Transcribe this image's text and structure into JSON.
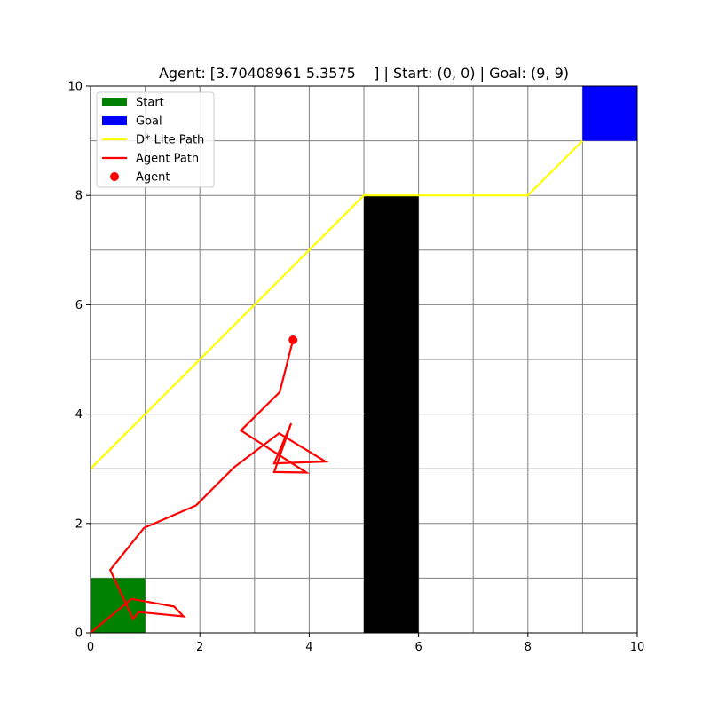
{
  "chart_data": {
    "type": "grid-path",
    "title": "Agent: [3.70408961 5.3575    ] | Start: (0, 0) | Goal: (9, 9)",
    "xlim": [
      0,
      10
    ],
    "ylim": [
      0,
      10
    ],
    "x_ticks": [
      "0",
      "2",
      "4",
      "6",
      "8",
      "10"
    ],
    "y_ticks": [
      "0",
      "2",
      "4",
      "6",
      "8",
      "10"
    ],
    "grid": true,
    "legend": {
      "placement": "top-left",
      "entries": [
        {
          "label": "Start",
          "kind": "patch",
          "color": "#008000"
        },
        {
          "label": "Goal",
          "kind": "patch",
          "color": "#0000ff"
        },
        {
          "label": "D* Lite Path",
          "kind": "line",
          "color": "#ffff00"
        },
        {
          "label": "Agent Path",
          "kind": "line",
          "color": "#ff0000"
        },
        {
          "label": "Agent",
          "kind": "marker",
          "color": "#ff0000"
        }
      ]
    },
    "start_cell": {
      "x": 0,
      "y": 0,
      "w": 1,
      "h": 1,
      "color": "#008000"
    },
    "goal_cell": {
      "x": 9,
      "y": 9,
      "w": 1,
      "h": 1,
      "color": "#0000ff"
    },
    "obstacles": [
      {
        "x": 5,
        "y": 0,
        "w": 1,
        "h": 8,
        "color": "#000000"
      }
    ],
    "dstar_path": {
      "color": "#ffff00",
      "points": [
        [
          0,
          3
        ],
        [
          5,
          8
        ],
        [
          8,
          8
        ],
        [
          9,
          9
        ]
      ]
    },
    "agent_path": {
      "color": "#ff0000",
      "points": [
        [
          0,
          0
        ],
        [
          0.75,
          0.62
        ],
        [
          1.53,
          0.48
        ],
        [
          1.7,
          0.3
        ],
        [
          0.88,
          0.38
        ],
        [
          0.78,
          0.25
        ],
        [
          0.36,
          1.15
        ],
        [
          0.98,
          1.92
        ],
        [
          1.93,
          2.33
        ],
        [
          2.63,
          3.03
        ],
        [
          3.45,
          3.65
        ],
        [
          4.3,
          3.13
        ],
        [
          3.36,
          3.1
        ],
        [
          3.67,
          3.83
        ],
        [
          3.36,
          2.94
        ],
        [
          3.95,
          2.93
        ],
        [
          2.75,
          3.7
        ],
        [
          3.46,
          4.4
        ],
        [
          3.70408961,
          5.3575
        ]
      ]
    },
    "agent": {
      "x": 3.70408961,
      "y": 5.3575,
      "color": "#ff0000"
    }
  }
}
